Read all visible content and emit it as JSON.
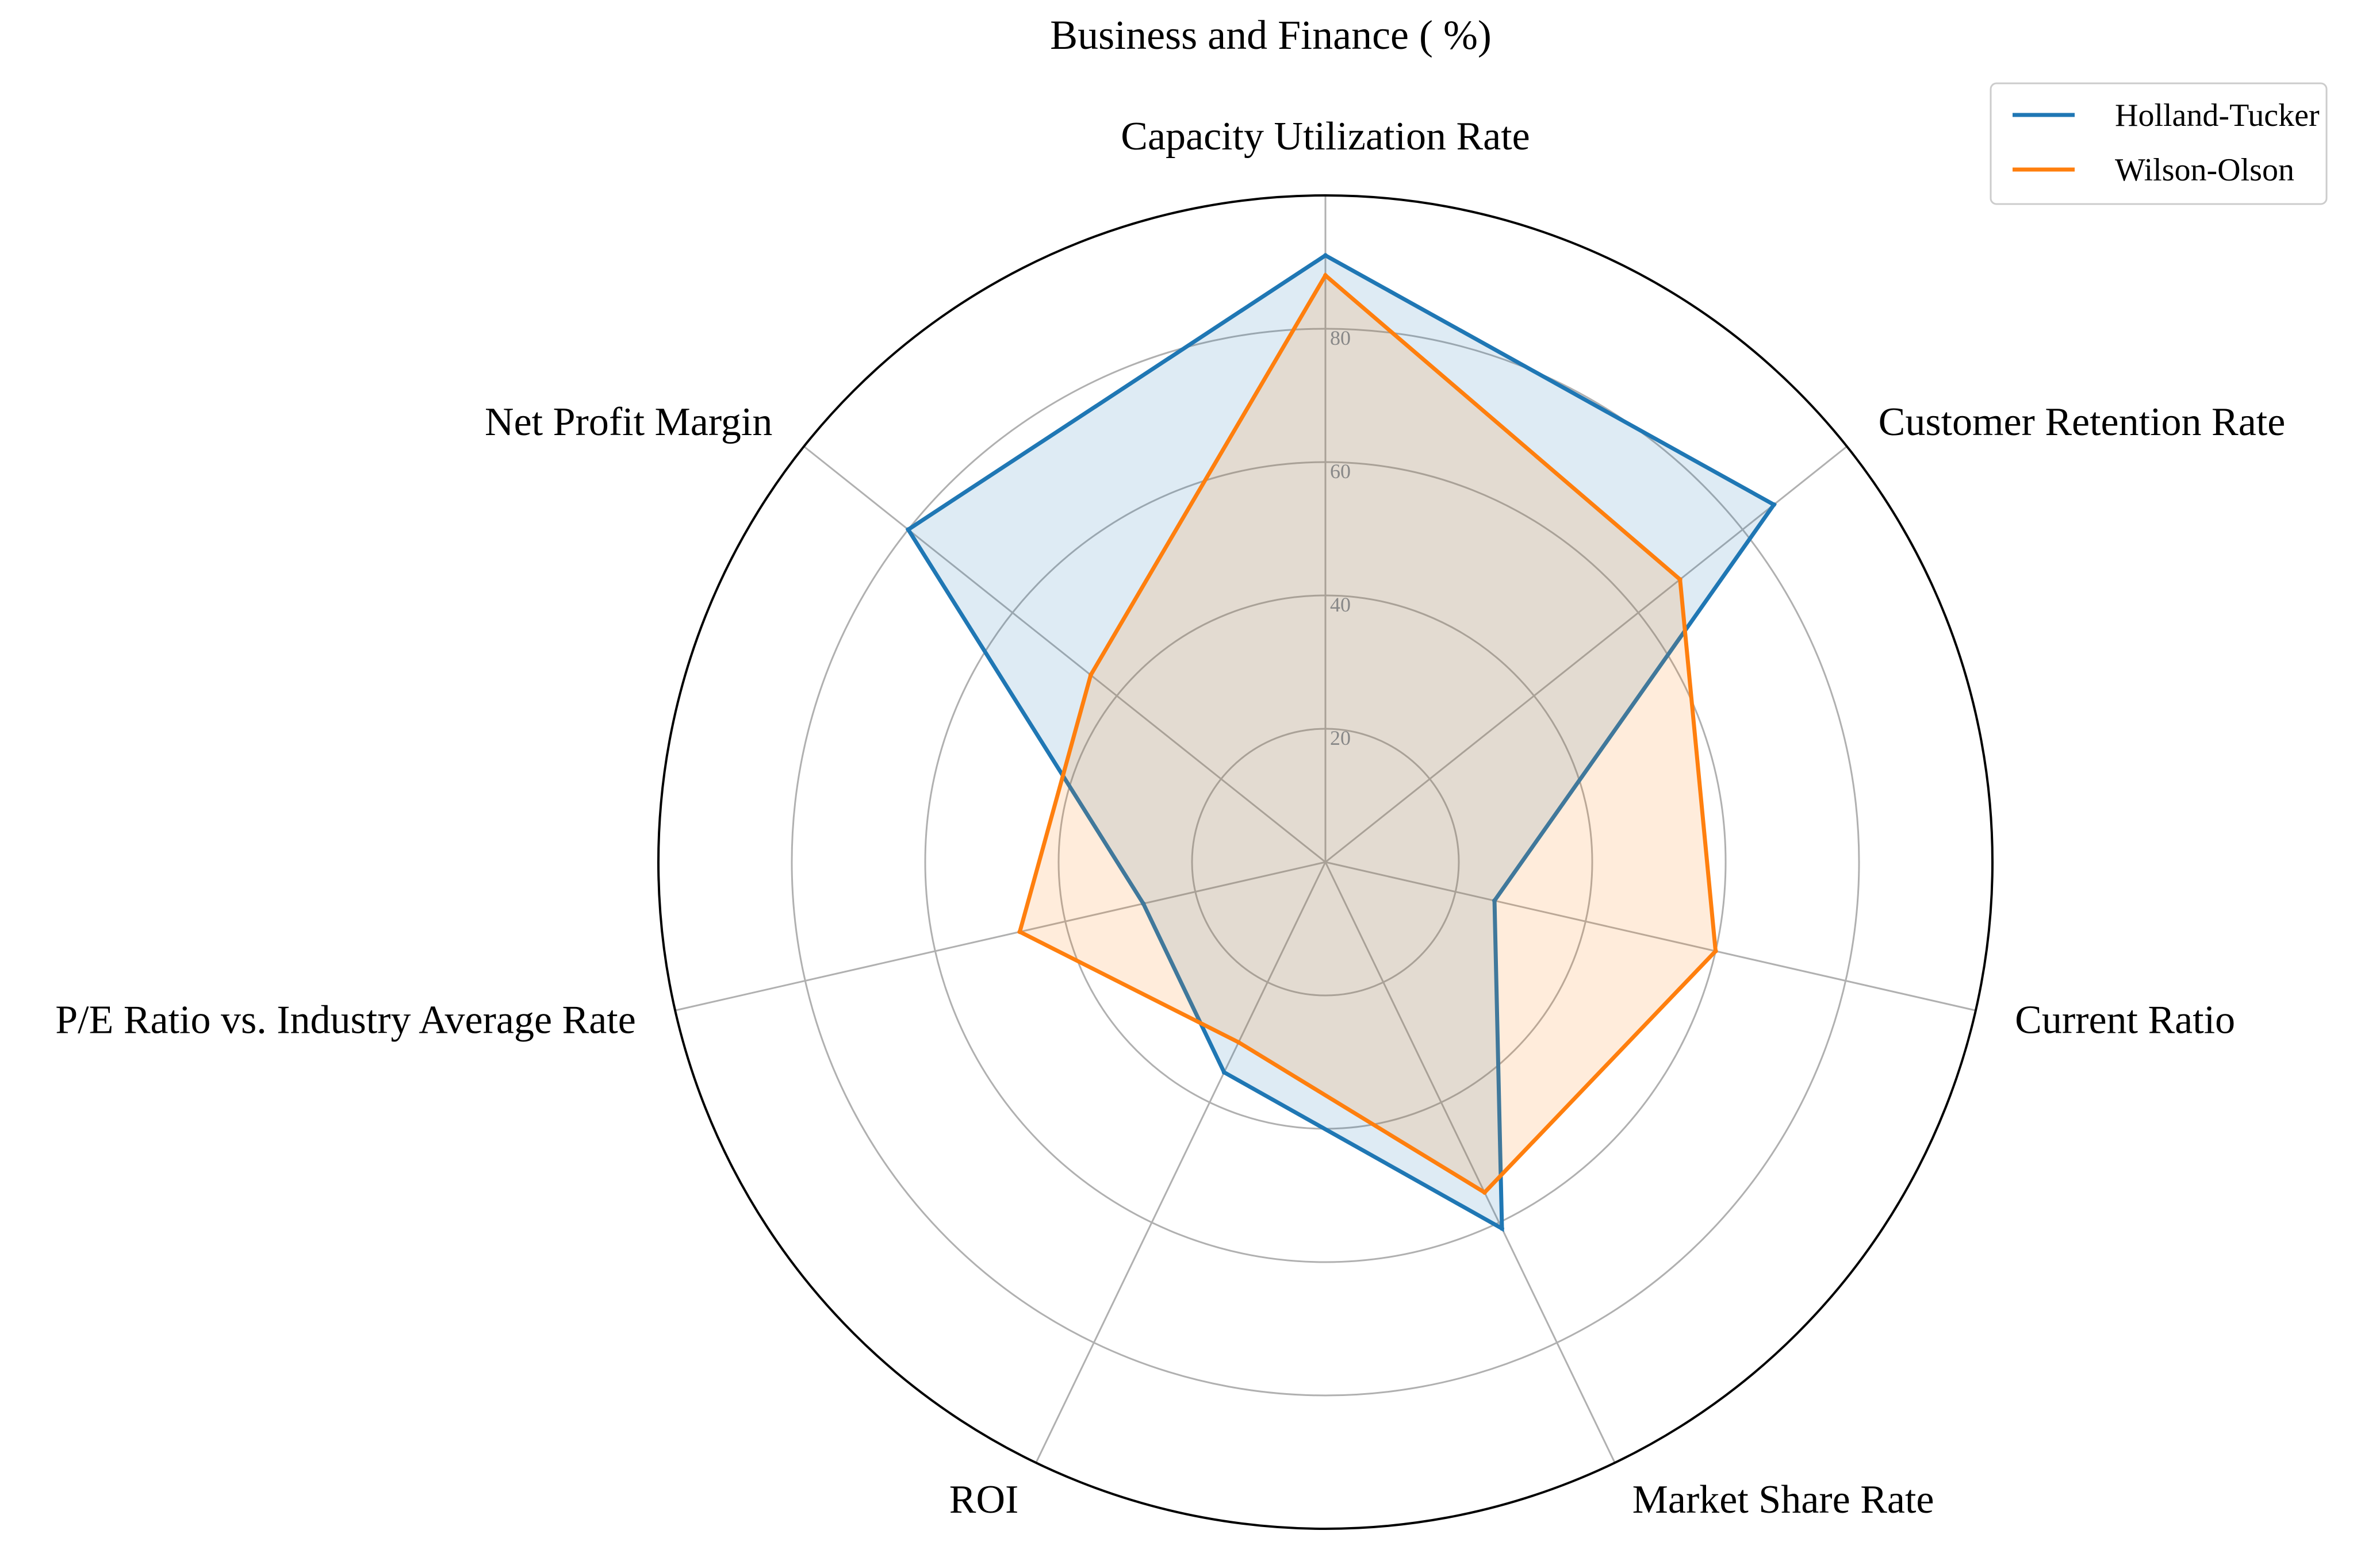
{
  "chart_data": {
    "type": "radar",
    "title": "Business and Finance ( %)",
    "axes": [
      "Capacity Utilization Rate",
      "Customer Retention Rate",
      "Current Ratio",
      "Market Share Rate",
      "ROI",
      "P/E Ratio vs. Industry Average Rate",
      "Net Profit Margin"
    ],
    "r_ticks": [
      "20",
      "40",
      "60",
      "80"
    ],
    "r_range": [
      0,
      100
    ],
    "grid": true,
    "legend_position": "top-right",
    "series": [
      {
        "name": "Holland-Tucker",
        "color": "#1f77b4",
        "fill": "rgba(31,119,180,0.15)",
        "values": [
          91,
          86,
          26,
          61,
          35,
          28,
          80
        ]
      },
      {
        "name": "Wilson-Olson",
        "color": "#ff7f0e",
        "fill": "rgba(255,127,14,0.15)",
        "values": [
          88,
          68,
          60,
          55,
          30,
          47,
          45
        ]
      }
    ]
  }
}
